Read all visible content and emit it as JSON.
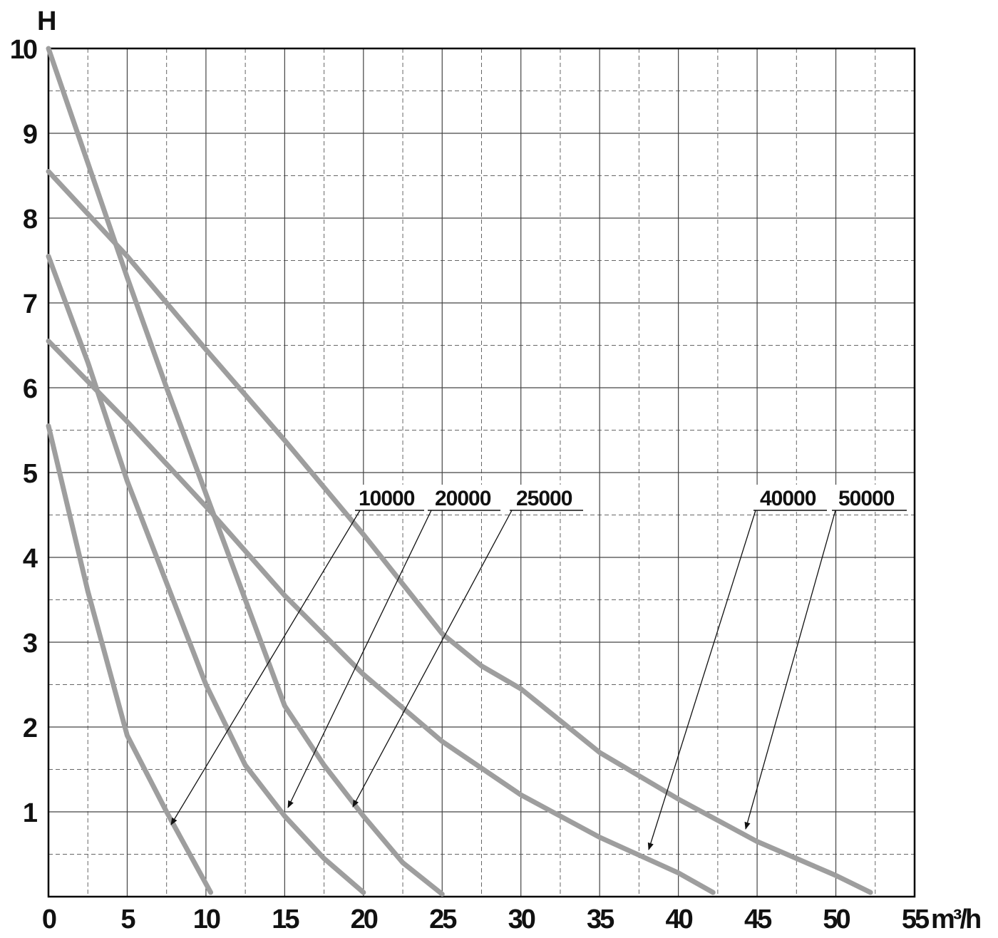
{
  "chart_data": {
    "type": "line",
    "y_label": "H",
    "x_label": "m³/h",
    "xlim": [
      0,
      55
    ],
    "xticks": [
      0,
      5,
      10,
      15,
      20,
      25,
      30,
      35,
      40,
      45,
      50,
      55
    ],
    "ylim": [
      0,
      10
    ],
    "yticks": [
      0,
      1,
      2,
      3,
      4,
      5,
      6,
      7,
      8,
      9,
      10
    ],
    "grid": true,
    "minor_grid": true,
    "series": [
      {
        "name": "10000",
        "color": "#9e9e9e",
        "x": [
          0,
          2.5,
          5,
          7.5,
          10.3
        ],
        "values": [
          5.55,
          3.6,
          1.9,
          1.0,
          0.05
        ]
      },
      {
        "name": "20000",
        "color": "#9e9e9e",
        "x": [
          0,
          2.5,
          5,
          7.5,
          10,
          12.5,
          15,
          17.5,
          20
        ],
        "values": [
          7.55,
          6.3,
          4.9,
          3.7,
          2.5,
          1.55,
          0.95,
          0.45,
          0.05
        ]
      },
      {
        "name": "25000",
        "color": "#9e9e9e",
        "x": [
          0,
          2.5,
          5,
          7.5,
          10,
          12.5,
          15,
          17.5,
          20,
          22.5,
          25
        ],
        "values": [
          10,
          8.65,
          7.3,
          6.0,
          4.75,
          3.5,
          2.25,
          1.55,
          0.95,
          0.4,
          0.03
        ]
      },
      {
        "name": "40000",
        "color": "#9e9e9e",
        "x": [
          0,
          5,
          10,
          15,
          20,
          25,
          30,
          35,
          40,
          42.2
        ],
        "values": [
          6.55,
          5.6,
          4.6,
          3.55,
          2.62,
          1.83,
          1.2,
          0.7,
          0.28,
          0.05
        ]
      },
      {
        "name": "50000",
        "color": "#9e9e9e",
        "x": [
          0,
          5,
          10,
          15,
          20,
          25,
          27.5,
          30,
          35,
          40,
          45,
          50,
          52.2
        ],
        "values": [
          8.55,
          7.55,
          6.45,
          5.38,
          4.27,
          3.1,
          2.72,
          2.45,
          1.7,
          1.15,
          0.65,
          0.25,
          0.05
        ]
      }
    ]
  }
}
